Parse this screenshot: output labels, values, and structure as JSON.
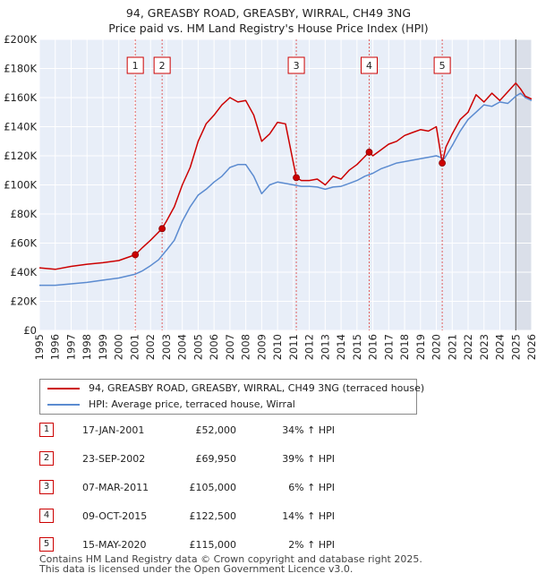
{
  "title_line1": "94, GREASBY ROAD, GREASBY, WIRRAL, CH49 3NG",
  "title_line2": "Price paid vs. HM Land Registry's House Price Index (HPI)",
  "chart_data": {
    "type": "line",
    "xlim": [
      1995,
      2026
    ],
    "ylim": [
      0,
      200000
    ],
    "x_ticks": [
      1995,
      1996,
      1997,
      1998,
      1999,
      2000,
      2001,
      2002,
      2003,
      2004,
      2005,
      2006,
      2007,
      2008,
      2009,
      2010,
      2011,
      2012,
      2013,
      2014,
      2015,
      2016,
      2017,
      2018,
      2019,
      2020,
      2021,
      2022,
      2023,
      2024,
      2025,
      2026
    ],
    "y_ticks": [
      0,
      20000,
      40000,
      60000,
      80000,
      100000,
      120000,
      140000,
      160000,
      180000,
      200000
    ],
    "y_tick_labels": [
      "£0",
      "£20K",
      "£40K",
      "£60K",
      "£80K",
      "£100K",
      "£120K",
      "£140K",
      "£160K",
      "£180K",
      "£200K"
    ],
    "shaded_from": 2025.0,
    "colors": {
      "property": "#cc0000",
      "hpi": "#5b8bd0",
      "bg": "#e8eef8",
      "grid": "#ffffff",
      "marker_line": "#e06060"
    },
    "series": [
      {
        "name": "94, GREASBY ROAD, GREASBY, WIRRAL, CH49 3NG (terraced house)",
        "x": [
          1995,
          1996,
          1997,
          1998,
          1999,
          2000,
          2001.04,
          2001.5,
          2002,
          2002.73,
          2003,
          2003.5,
          2004,
          2004.5,
          2005,
          2005.5,
          2006,
          2006.5,
          2007,
          2007.5,
          2008,
          2008.5,
          2009,
          2009.5,
          2010,
          2010.5,
          2011.18,
          2011.5,
          2012,
          2012.5,
          2013,
          2013.5,
          2014,
          2014.5,
          2015,
          2015.77,
          2016,
          2016.5,
          2017,
          2017.5,
          2018,
          2018.5,
          2019,
          2019.5,
          2020,
          2020.37,
          2020.6,
          2021,
          2021.5,
          2022,
          2022.5,
          2023,
          2023.5,
          2024,
          2024.5,
          2025,
          2025.3,
          2025.6,
          2026
        ],
        "values": [
          43000,
          42000,
          44000,
          45500,
          46500,
          48000,
          52000,
          57000,
          62000,
          69950,
          75000,
          85000,
          100000,
          112000,
          130000,
          142000,
          148000,
          155000,
          160000,
          157000,
          158000,
          148000,
          130000,
          135000,
          143000,
          142000,
          105000,
          103000,
          103000,
          104000,
          100000,
          106000,
          104000,
          110000,
          114000,
          122500,
          120000,
          124000,
          128000,
          130000,
          134000,
          136000,
          138000,
          137000,
          140000,
          115000,
          126000,
          135000,
          145000,
          150000,
          162000,
          157000,
          163000,
          158000,
          164000,
          170000,
          166000,
          161000,
          159000
        ]
      },
      {
        "name": "HPI: Average price, terraced house, Wirral",
        "x": [
          1995,
          1996,
          1997,
          1998,
          1999,
          2000,
          2001,
          2001.5,
          2002,
          2002.5,
          2003,
          2003.5,
          2004,
          2004.5,
          2005,
          2005.5,
          2006,
          2006.5,
          2007,
          2007.5,
          2008,
          2008.5,
          2009,
          2009.5,
          2010,
          2010.5,
          2011,
          2011.5,
          2012,
          2012.5,
          2013,
          2013.5,
          2014,
          2014.5,
          2015,
          2015.5,
          2016,
          2016.5,
          2017,
          2017.5,
          2018,
          2018.5,
          2019,
          2019.5,
          2020,
          2020.5,
          2021,
          2021.5,
          2022,
          2022.5,
          2023,
          2023.5,
          2024,
          2024.5,
          2025,
          2025.3,
          2025.6,
          2026
        ],
        "values": [
          31000,
          31000,
          32000,
          33000,
          34500,
          36000,
          38500,
          41000,
          44500,
          48500,
          55000,
          62000,
          75000,
          85000,
          93000,
          97000,
          102000,
          106000,
          112000,
          114000,
          114000,
          106000,
          94000,
          100000,
          102000,
          101000,
          100000,
          99000,
          99000,
          98500,
          97000,
          98500,
          99000,
          101000,
          103000,
          106000,
          108000,
          111000,
          113000,
          115000,
          116000,
          117000,
          118000,
          119000,
          120000,
          118000,
          127000,
          137000,
          145000,
          150000,
          155000,
          154000,
          157000,
          156000,
          161000,
          163000,
          160000,
          158000
        ]
      }
    ],
    "sales": [
      {
        "label": "1",
        "x": 2001.04,
        "value": 52000
      },
      {
        "label": "2",
        "x": 2002.73,
        "value": 69950
      },
      {
        "label": "3",
        "x": 2011.18,
        "value": 105000
      },
      {
        "label": "4",
        "x": 2015.77,
        "value": 122500
      },
      {
        "label": "5",
        "x": 2020.37,
        "value": 115000
      }
    ],
    "legend_position": "below"
  },
  "legend": {
    "property_label": "94, GREASBY ROAD, GREASBY, WIRRAL, CH49 3NG (terraced house)",
    "hpi_label": "HPI: Average price, terraced house, Wirral"
  },
  "sales_table": [
    {
      "num": "1",
      "date": "17-JAN-2001",
      "price": "£52,000",
      "hpi": "34% ↑ HPI"
    },
    {
      "num": "2",
      "date": "23-SEP-2002",
      "price": "£69,950",
      "hpi": "39% ↑ HPI"
    },
    {
      "num": "3",
      "date": "07-MAR-2011",
      "price": "£105,000",
      "hpi": "6% ↑ HPI"
    },
    {
      "num": "4",
      "date": "09-OCT-2015",
      "price": "£122,500",
      "hpi": "14% ↑ HPI"
    },
    {
      "num": "5",
      "date": "15-MAY-2020",
      "price": "£115,000",
      "hpi": "2% ↑ HPI"
    }
  ],
  "footer_line1": "Contains HM Land Registry data © Crown copyright and database right 2025.",
  "footer_line2": "This data is licensed under the Open Government Licence v3.0."
}
